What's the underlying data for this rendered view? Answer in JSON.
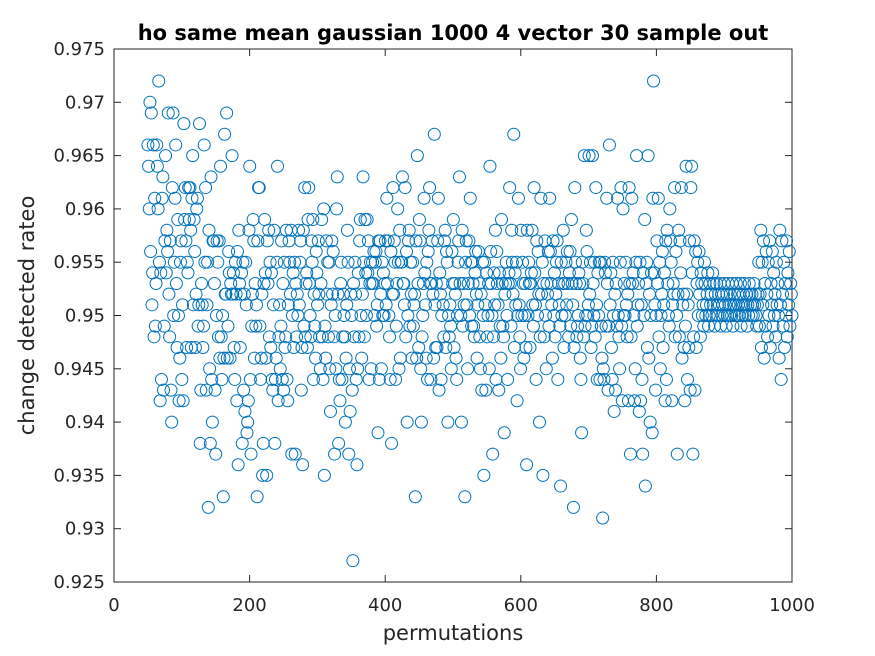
{
  "chart_data": {
    "type": "scatter",
    "title": "ho same mean gaussian 1000 4 vector 30 sample out",
    "xlabel": "permutations",
    "ylabel": "change detected rateo",
    "xlim": [
      0,
      1000
    ],
    "ylim": [
      0.925,
      0.975
    ],
    "xticks": [
      "0",
      "200",
      "400",
      "600",
      "800",
      "1000"
    ],
    "yticks": [
      "0.925",
      "0.93",
      "0.935",
      "0.94",
      "0.945",
      "0.95",
      "0.955",
      "0.96",
      "0.965",
      "0.97",
      "0.975"
    ],
    "marker": "open-circle",
    "marker_color": "#0072bd",
    "grid": false,
    "x_start": 50,
    "x_end": 1000,
    "y": [
      0.966,
      0.964,
      0.96,
      0.97,
      0.956,
      0.969,
      0.951,
      0.954,
      0.966,
      0.948,
      0.961,
      0.949,
      0.953,
      0.966,
      0.964,
      0.96,
      0.972,
      0.955,
      0.942,
      0.954,
      0.944,
      0.961,
      0.963,
      0.943,
      0.949,
      0.957,
      0.965,
      0.954,
      0.958,
      0.956,
      0.969,
      0.952,
      0.948,
      0.957,
      0.943,
      0.94,
      0.962,
      0.969,
      0.95,
      0.955,
      0.961,
      0.966,
      0.953,
      0.947,
      0.959,
      0.95,
      0.942,
      0.946,
      0.955,
      0.957,
      0.944,
      0.951,
      0.942,
      0.968,
      0.959,
      0.962,
      0.957,
      0.947,
      0.955,
      0.954,
      0.962,
      0.959,
      0.962,
      0.958,
      0.947,
      0.961,
      0.965,
      0.951,
      0.959,
      0.956,
      0.947,
      0.952,
      0.96,
      0.961,
      0.949,
      0.951,
      0.968,
      0.938,
      0.943,
      0.953,
      0.951,
      0.947,
      0.949,
      0.966,
      0.955,
      0.962,
      0.943,
      0.951,
      0.955,
      0.932,
      0.958,
      0.945,
      0.938,
      0.963,
      0.944,
      0.94,
      0.957,
      0.957,
      0.953,
      0.943,
      0.937,
      0.95,
      0.957,
      0.955,
      0.948,
      0.957,
      0.946,
      0.964,
      0.948,
      0.944,
      0.95,
      0.933,
      0.946,
      0.967,
      0.952,
      0.952,
      0.969,
      0.946,
      0.949,
      0.956,
      0.954,
      0.946,
      0.953,
      0.952,
      0.965,
      0.952,
      0.954,
      0.947,
      0.944,
      0.955,
      0.952,
      0.942,
      0.956,
      0.936,
      0.958,
      0.953,
      0.947,
      0.952,
      0.954,
      0.938,
      0.955,
      0.943,
      0.952,
      0.941,
      0.955,
      0.951,
      0.939,
      0.94,
      0.942,
      0.958,
      0.964,
      0.944,
      0.937,
      0.949,
      0.952,
      0.959,
      0.957,
      0.946,
      0.953,
      0.949,
      0.951,
      0.933,
      0.957,
      0.962,
      0.962,
      0.949,
      0.944,
      0.946,
      0.952,
      0.935,
      0.938,
      0.953,
      0.959,
      0.954,
      0.946,
      0.935,
      0.957,
      0.953,
      0.958,
      0.948,
      0.955,
      0.947,
      0.954,
      0.944,
      0.943,
      0.951,
      0.958,
      0.938,
      0.944,
      0.946,
      0.955,
      0.964,
      0.942,
      0.948,
      0.951,
      0.945,
      0.949,
      0.957,
      0.944,
      0.953,
      0.943,
      0.955,
      0.947,
      0.948,
      0.958,
      0.944,
      0.942,
      0.951,
      0.957,
      0.955,
      0.952,
      0.958,
      0.937,
      0.95,
      0.954,
      0.947,
      0.955,
      0.937,
      0.953,
      0.948,
      0.952,
      0.95,
      0.958,
      0.951,
      0.955,
      0.957,
      0.943,
      0.947,
      0.936,
      0.958,
      0.949,
      0.962,
      0.948,
      0.953,
      0.954,
      0.947,
      0.959,
      0.962,
      0.953,
      0.95,
      0.948,
      0.957,
      0.955,
      0.959,
      0.944,
      0.952,
      0.949,
      0.946,
      0.956,
      0.954,
      0.951,
      0.957,
      0.952,
      0.948,
      0.945,
      0.953,
      0.959,
      0.948,
      0.944,
      0.96,
      0.935,
      0.949,
      0.946,
      0.957,
      0.952,
      0.955,
      0.948,
      0.955,
      0.945,
      0.941,
      0.951,
      0.957,
      0.952,
      0.956,
      0.948,
      0.937,
      0.95,
      0.945,
      0.96,
      0.963,
      0.952,
      0.938,
      0.944,
      0.942,
      0.953,
      0.955,
      0.944,
      0.948,
      0.952,
      0.95,
      0.948,
      0.94,
      0.946,
      0.951,
      0.958,
      0.955,
      0.937,
      0.945,
      0.941,
      0.952,
      0.95,
      0.943,
      0.927,
      0.953,
      0.948,
      0.955,
      0.952,
      0.944,
      0.936,
      0.945,
      0.954,
      0.948,
      0.957,
      0.959,
      0.95,
      0.946,
      0.952,
      0.963,
      0.955,
      0.948,
      0.959,
      0.954,
      0.95,
      0.959,
      0.954,
      0.957,
      0.944,
      0.953,
      0.955,
      0.945,
      0.953,
      0.955,
      0.953,
      0.956,
      0.95,
      0.955,
      0.956,
      0.949,
      0.951,
      0.939,
      0.957,
      0.944,
      0.957,
      0.952,
      0.945,
      0.955,
      0.95,
      0.954,
      0.95,
      0.953,
      0.957,
      0.951,
      0.961,
      0.953,
      0.957,
      0.95,
      0.948,
      0.944,
      0.956,
      0.938,
      0.952,
      0.962,
      0.952,
      0.957,
      0.955,
      0.944,
      0.949,
      0.953,
      0.96,
      0.955,
      0.945,
      0.958,
      0.946,
      0.955,
      0.955,
      0.963,
      0.953,
      0.953,
      0.951,
      0.962,
      0.948,
      0.956,
      0.94,
      0.95,
      0.957,
      0.958,
      0.949,
      0.955,
      0.952,
      0.946,
      0.955,
      0.949,
      0.951,
      0.952,
      0.933,
      0.957,
      0.946,
      0.965,
      0.953,
      0.947,
      0.959,
      0.957,
      0.945,
      0.94,
      0.948,
      0.95,
      0.953,
      0.961,
      0.954,
      0.951,
      0.946,
      0.955,
      0.944,
      0.956,
      0.958,
      0.962,
      0.953,
      0.944,
      0.953,
      0.957,
      0.952,
      0.946,
      0.967,
      0.951,
      0.947,
      0.953,
      0.947,
      0.957,
      0.961,
      0.943,
      0.954,
      0.952,
      0.944,
      0.95,
      0.953,
      0.951,
      0.948,
      0.957,
      0.958,
      0.947,
      0.956,
      0.955,
      0.94,
      0.95,
      0.948,
      0.951,
      0.949,
      0.945,
      0.956,
      0.953,
      0.959,
      0.947,
      0.953,
      0.952,
      0.946,
      0.944,
      0.95,
      0.955,
      0.957,
      0.963,
      0.953,
      0.95,
      0.94,
      0.958,
      0.949,
      0.953,
      0.951,
      0.933,
      0.955,
      0.957,
      0.951,
      0.945,
      0.953,
      0.957,
      0.95,
      0.961,
      0.955,
      0.949,
      0.955,
      0.953,
      0.949,
      0.948,
      0.954,
      0.956,
      0.952,
      0.946,
      0.951,
      0.956,
      0.953,
      0.948,
      0.945,
      0.952,
      0.943,
      0.955,
      0.95,
      0.935,
      0.955,
      0.951,
      0.943,
      0.954,
      0.948,
      0.95,
      0.953,
      0.945,
      0.964,
      0.956,
      0.953,
      0.95,
      0.937,
      0.948,
      0.954,
      0.951,
      0.958,
      0.944,
      0.956,
      0.953,
      0.951,
      0.943,
      0.954,
      0.949,
      0.946,
      0.959,
      0.953,
      0.949,
      0.948,
      0.939,
      0.952,
      0.953,
      0.955,
      0.95,
      0.944,
      0.953,
      0.954,
      0.962,
      0.953,
      0.949,
      0.958,
      0.955,
      0.952,
      0.967,
      0.947,
      0.954,
      0.951,
      0.955,
      0.942,
      0.95,
      0.961,
      0.951,
      0.948,
      0.945,
      0.958,
      0.95,
      0.955,
      0.953,
      0.946,
      0.95,
      0.953,
      0.947,
      0.936,
      0.958,
      0.95,
      0.955,
      0.953,
      0.947,
      0.953,
      0.954,
      0.958,
      0.951,
      0.949,
      0.962,
      0.954,
      0.951,
      0.944,
      0.957,
      0.95,
      0.956,
      0.952,
      0.94,
      0.948,
      0.961,
      0.952,
      0.955,
      0.935,
      0.953,
      0.948,
      0.957,
      0.95,
      0.945,
      0.953,
      0.952,
      0.956,
      0.949,
      0.961,
      0.956,
      0.953,
      0.951,
      0.946,
      0.957,
      0.95,
      0.954,
      0.948,
      0.952,
      0.955,
      0.957,
      0.944,
      0.953,
      0.951,
      0.949,
      0.934,
      0.955,
      0.95,
      0.953,
      0.958,
      0.947,
      0.953,
      0.95,
      0.955,
      0.951,
      0.956,
      0.953,
      0.948,
      0.954,
      0.956,
      0.949,
      0.959,
      0.953,
      0.951,
      0.932,
      0.947,
      0.962,
      0.955,
      0.953,
      0.948,
      0.949,
      0.95,
      0.954,
      0.953,
      0.946,
      0.944,
      0.939,
      0.955,
      0.953,
      0.948,
      0.965,
      0.949,
      0.95,
      0.958,
      0.956,
      0.95,
      0.951,
      0.965,
      0.952,
      0.955,
      0.947,
      0.949,
      0.965,
      0.953,
      0.95,
      0.955,
      0.948,
      0.962,
      0.951,
      0.944,
      0.954,
      0.95,
      0.955,
      0.944,
      0.955,
      0.949,
      0.946,
      0.931,
      0.945,
      0.944,
      0.955,
      0.954,
      0.949,
      0.961,
      0.953,
      0.943,
      0.949,
      0.966,
      0.951,
      0.954,
      0.947,
      0.944,
      0.955,
      0.95,
      0.941,
      0.952,
      0.943,
      0.953,
      0.949,
      0.961,
      0.95,
      0.948,
      0.945,
      0.955,
      0.962,
      0.949,
      0.942,
      0.96,
      0.95,
      0.953,
      0.95,
      0.955,
      0.951,
      0.948,
      0.952,
      0.942,
      0.962,
      0.953,
      0.937,
      0.948,
      0.961,
      0.953,
      0.954,
      0.95,
      0.942,
      0.945,
      0.955,
      0.965,
      0.949,
      0.951,
      0.953,
      0.941,
      0.955,
      0.942,
      0.951,
      0.944,
      0.937,
      0.954,
      0.95,
      0.959,
      0.934,
      0.953,
      0.955,
      0.947,
      0.965,
      0.946,
      0.952,
      0.94,
      0.95,
      0.954,
      0.939,
      0.961,
      0.972,
      0.954,
      0.951,
      0.943,
      0.95,
      0.957,
      0.953,
      0.961,
      0.948,
      0.955,
      0.945,
      0.95,
      0.952,
      0.956,
      0.947,
      0.951,
      0.954,
      0.942,
      0.957,
      0.944,
      0.958,
      0.953,
      0.95,
      0.949,
      0.96,
      0.957,
      0.955,
      0.942,
      0.951,
      0.953,
      0.952,
      0.962,
      0.948,
      0.956,
      0.95,
      0.937,
      0.952,
      0.958,
      0.948,
      0.957,
      0.954,
      0.962,
      0.946,
      0.951,
      0.952,
      0.947,
      0.942,
      0.949,
      0.964,
      0.952,
      0.944,
      0.951,
      0.947,
      0.957,
      0.943,
      0.962,
      0.964,
      0.954,
      0.937,
      0.948,
      0.957,
      0.943,
      0.956,
      0.947,
      0.953,
      0.955,
      0.95,
      0.956,
      0.952,
      0.948,
      0.954,
      0.953,
      0.95,
      0.951,
      0.949,
      0.955,
      0.953,
      0.95,
      0.951,
      0.952,
      0.954,
      0.949,
      0.95,
      0.953,
      0.951,
      0.952,
      0.95,
      0.954,
      0.951,
      0.953,
      0.949,
      0.952,
      0.95,
      0.953,
      0.951,
      0.95,
      0.952,
      0.951,
      0.953,
      0.949,
      0.952,
      0.95,
      0.951,
      0.952,
      0.953,
      0.95,
      0.951,
      0.949,
      0.952,
      0.95,
      0.953,
      0.951,
      0.95,
      0.952,
      0.951,
      0.95,
      0.953,
      0.949,
      0.951,
      0.952,
      0.95,
      0.951,
      0.953,
      0.95,
      0.952,
      0.951,
      0.95,
      0.952,
      0.953,
      0.949,
      0.951,
      0.95,
      0.952,
      0.951,
      0.953,
      0.95,
      0.951,
      0.952,
      0.949,
      0.951,
      0.95,
      0.953,
      0.952,
      0.951,
      0.95,
      0.952,
      0.951,
      0.95,
      0.953,
      0.951,
      0.952,
      0.95,
      0.949,
      0.951,
      0.952,
      0.955,
      0.949,
      0.952,
      0.958,
      0.947,
      0.955,
      0.951,
      0.957,
      0.946,
      0.953,
      0.949,
      0.956,
      0.952,
      0.948,
      0.955,
      0.95,
      0.957,
      0.947,
      0.953,
      0.951,
      0.956,
      0.949,
      0.954,
      0.95,
      0.952,
      0.948,
      0.955,
      0.951,
      0.953,
      0.95,
      0.946,
      0.958,
      0.951,
      0.944,
      0.957,
      0.952,
      0.949,
      0.955,
      0.947,
      0.953,
      0.95,
      0.957,
      0.948,
      0.954,
      0.951,
      0.956,
      0.949,
      0.953,
      0.952,
      0.95
    ]
  }
}
